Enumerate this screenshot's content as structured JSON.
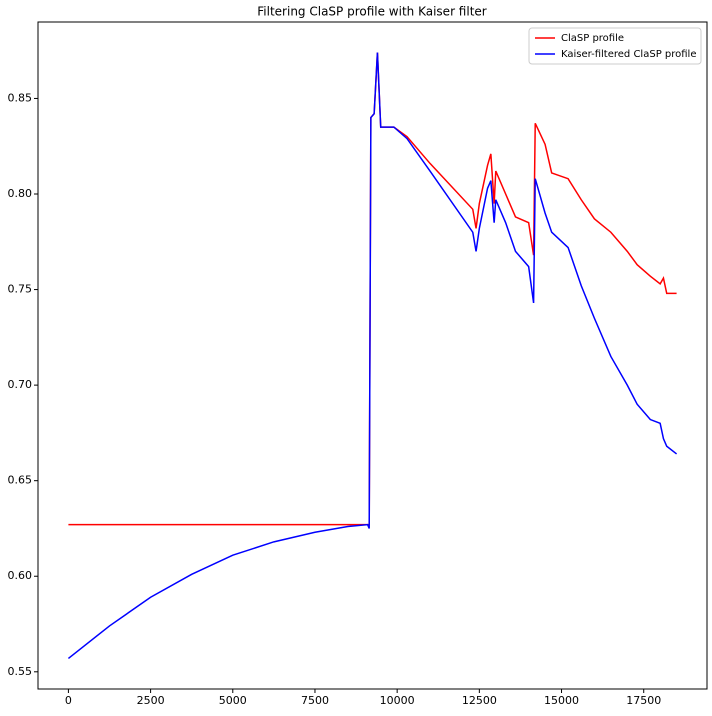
{
  "chart_data": {
    "type": "line",
    "title": "Filtering ClaSP profile with Kaiser filter",
    "x": [
      0,
      1250,
      2500,
      3750,
      5000,
      6250,
      7500,
      8500,
      9100,
      9150,
      9200,
      9300,
      9400,
      9500,
      9900,
      10300,
      11000,
      12300,
      12400,
      12500,
      12750,
      12850,
      12950,
      13000,
      13300,
      13600,
      14000,
      14150,
      14200,
      14500,
      14700,
      15200,
      15600,
      16000,
      16500,
      17000,
      17300,
      17700,
      18000,
      18100,
      18200,
      18500
    ],
    "series": [
      {
        "name": "ClaSP profile",
        "color": "#ff0000",
        "values": [
          0.627,
          0.627,
          0.627,
          0.627,
          0.627,
          0.627,
          0.627,
          0.627,
          0.627,
          0.627,
          0.84,
          0.842,
          0.874,
          0.835,
          0.835,
          0.83,
          0.816,
          0.792,
          0.782,
          0.795,
          0.815,
          0.821,
          0.795,
          0.812,
          0.8,
          0.788,
          0.785,
          0.768,
          0.837,
          0.826,
          0.811,
          0.808,
          0.797,
          0.787,
          0.78,
          0.77,
          0.763,
          0.757,
          0.753,
          0.756,
          0.748,
          0.748
        ]
      },
      {
        "name": "Kaiser-filtered ClaSP profile",
        "color": "#0000ff",
        "values": [
          0.557,
          0.574,
          0.589,
          0.601,
          0.611,
          0.618,
          0.623,
          0.626,
          0.627,
          0.625,
          0.84,
          0.842,
          0.874,
          0.835,
          0.835,
          0.829,
          0.812,
          0.78,
          0.77,
          0.782,
          0.803,
          0.807,
          0.785,
          0.797,
          0.785,
          0.77,
          0.762,
          0.743,
          0.808,
          0.79,
          0.78,
          0.772,
          0.752,
          0.735,
          0.715,
          0.7,
          0.69,
          0.682,
          0.68,
          0.672,
          0.668,
          0.664
        ]
      }
    ],
    "xlim": [
      -925,
      19425
    ],
    "ylim": [
      0.541,
      0.89
    ],
    "xticks": [
      0,
      2500,
      5000,
      7500,
      10000,
      12500,
      15000,
      17500
    ],
    "yticks": [
      0.55,
      {
        "value": 0.6,
        "label": "0.60"
      },
      0.65,
      {
        "value": 0.7,
        "label": "0.70"
      },
      0.75,
      {
        "value": 0.8,
        "label": "0.80"
      },
      0.85
    ],
    "legend": "upper right",
    "grid": false
  }
}
